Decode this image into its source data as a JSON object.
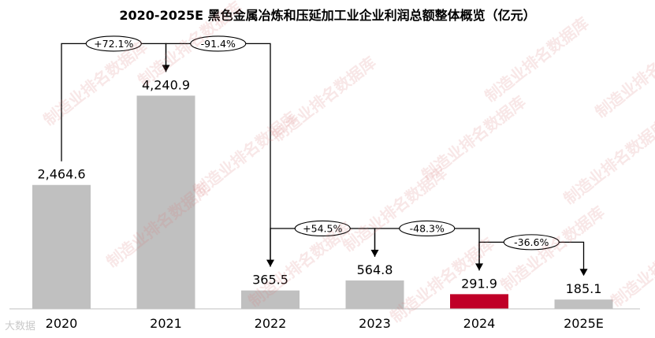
{
  "chart_data": {
    "type": "bar",
    "title": "2020-2025E 黑色金属冶炼和压延加工业企业利润总额整体概览（亿元）",
    "categories": [
      "2020",
      "2021",
      "2022",
      "2023",
      "2024",
      "2025E"
    ],
    "values": [
      2464.6,
      4240.9,
      365.5,
      564.8,
      291.9,
      185.1
    ],
    "value_labels": [
      "2,464.6",
      "4,240.9",
      "365.5",
      "564.8",
      "291.9",
      "185.1"
    ],
    "changes": [
      {
        "from": 0,
        "to": 1,
        "label": "+72.1%"
      },
      {
        "from": 1,
        "to": 2,
        "label": "-91.4%"
      },
      {
        "from": 2,
        "to": 3,
        "label": "+54.5%"
      },
      {
        "from": 3,
        "to": 4,
        "label": "-48.3%"
      },
      {
        "from": 4,
        "to": 5,
        "label": "-36.6%"
      }
    ],
    "colors": {
      "bar": "#c0c0c0",
      "highlight": "#c00028",
      "highlight_index": 4
    },
    "ylim": [
      0,
      4600
    ],
    "grid": false,
    "legend": "none"
  },
  "watermark": {
    "text": "制造业排名数据库"
  },
  "source_mark": "大数据"
}
